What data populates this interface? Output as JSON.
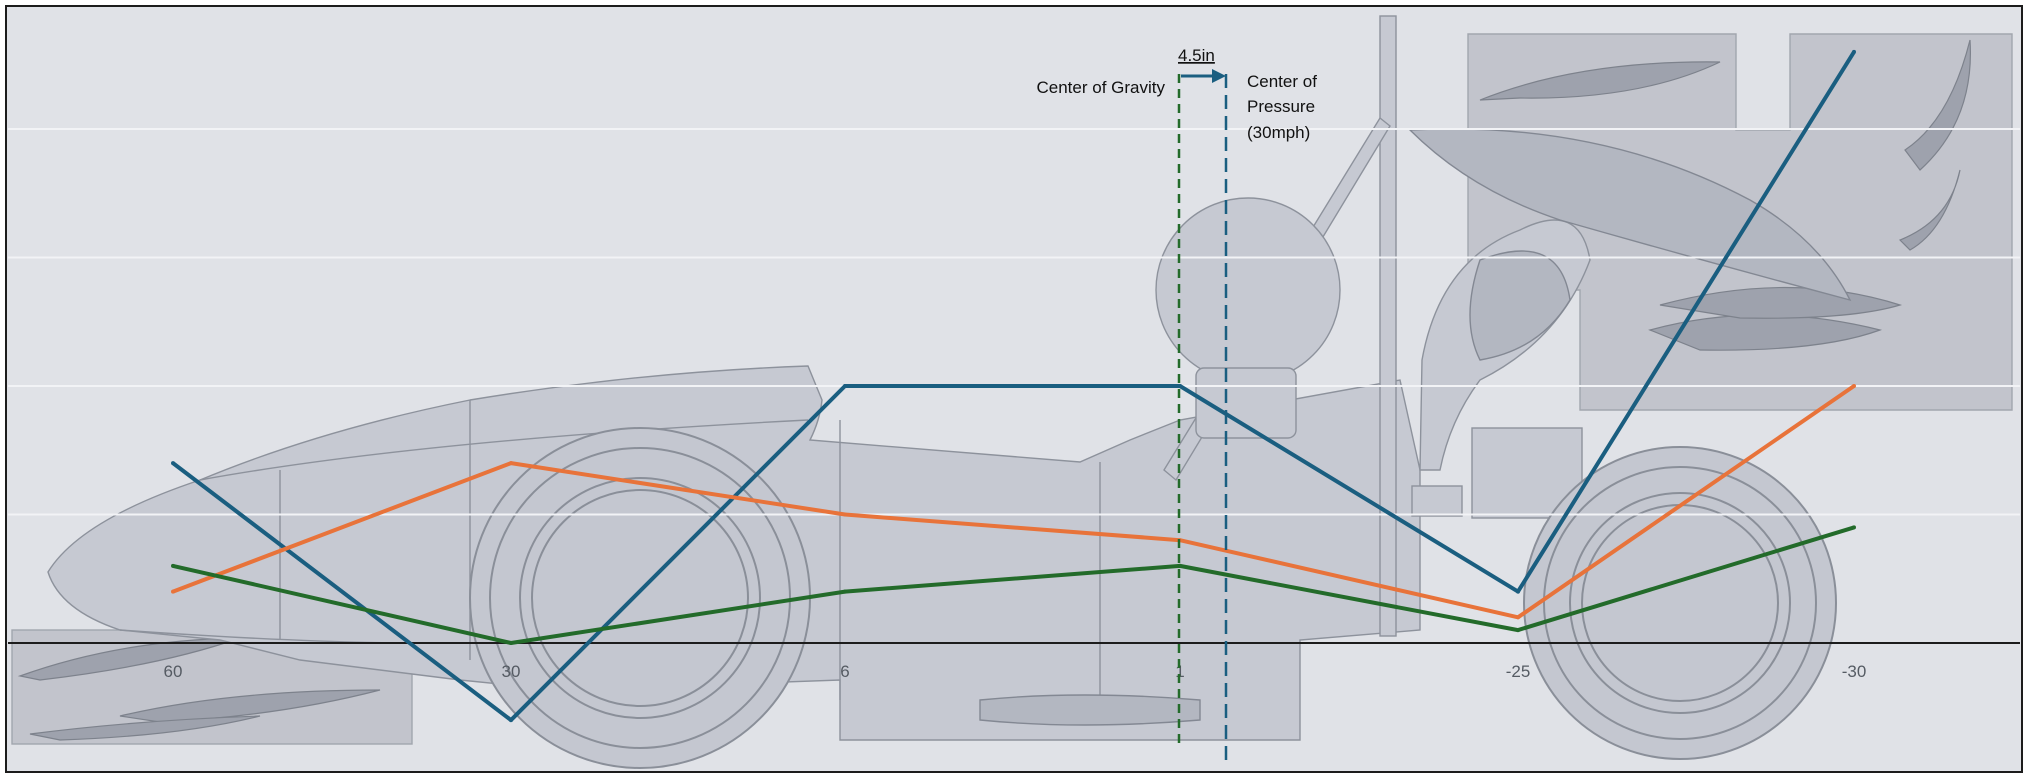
{
  "chart_data": {
    "type": "line",
    "categories": [
      "60",
      "30",
      "6",
      "1",
      "-25",
      "-30"
    ],
    "ylim": [
      -3,
      20
    ],
    "grid": true,
    "legend": "none",
    "series": [
      {
        "color": "#1a5e80",
        "values": [
          7,
          -3,
          10,
          10,
          2,
          23
        ]
      },
      {
        "color": "#e8733a",
        "values": [
          2,
          7,
          5,
          4,
          1,
          10
        ]
      },
      {
        "color": "#236b2a",
        "values": [
          3,
          0,
          2,
          3,
          0.5,
          4.5
        ]
      }
    ]
  },
  "annotations": {
    "center_of_gravity": "Center of Gravity",
    "center_of_pressure": [
      "Center of",
      "Pressure",
      "(30mph)"
    ],
    "offset": "4.5in",
    "cg_line_color": "#236b2a",
    "cp_line_color": "#1a5e80"
  }
}
